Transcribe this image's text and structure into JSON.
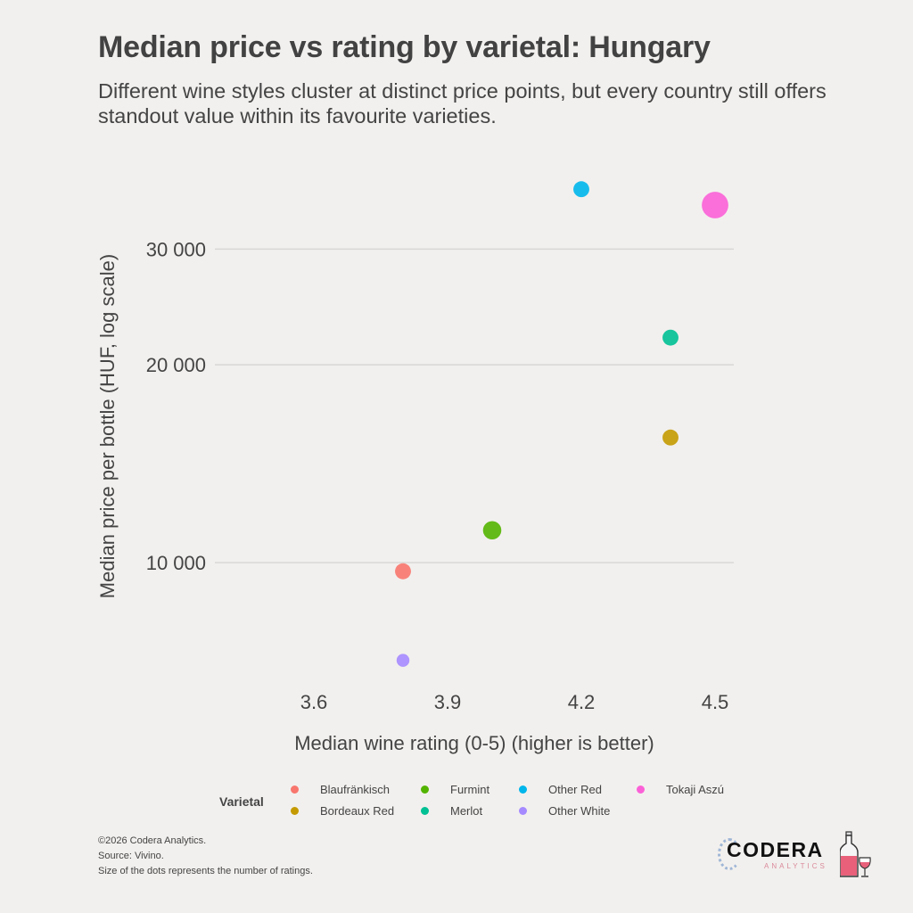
{
  "header": {
    "title": "Median price vs rating by varietal: Hungary",
    "subtitle": "Different wine styles cluster at distinct price points, but every country still offers standout value within its favourite varieties."
  },
  "chart_data": {
    "type": "scatter",
    "title": "Median price vs rating by varietal: Hungary",
    "xlabel": "Median wine rating (0-5) (higher is better)",
    "ylabel": "Median price per bottle (HUF, log scale)",
    "x_scale": "linear",
    "y_scale": "log",
    "xlim": [
      3.55,
      4.55
    ],
    "ylim": [
      6500,
      40000
    ],
    "x_ticks": [
      3.6,
      3.9,
      4.2,
      4.5
    ],
    "x_tick_labels": [
      "3.6",
      "3.9",
      "4.2",
      "4.5"
    ],
    "y_ticks": [
      10000,
      20000,
      30000
    ],
    "y_tick_labels": [
      "10 000",
      "20 000",
      "30 000"
    ],
    "grid": "horizontal-major",
    "legend_title": "Varietal",
    "legend_position": "bottom",
    "size_encoding": "number of ratings (relative)",
    "series": [
      {
        "name": "Blaufränkisch",
        "color": "#f8766d",
        "x": 3.8,
        "y": 9700,
        "size": 2
      },
      {
        "name": "Bordeaux Red",
        "color": "#c49a00",
        "x": 4.4,
        "y": 15500,
        "size": 2
      },
      {
        "name": "Furmint",
        "color": "#53b400",
        "x": 4.0,
        "y": 11200,
        "size": 3
      },
      {
        "name": "Merlot",
        "color": "#00c094",
        "x": 4.4,
        "y": 22000,
        "size": 2
      },
      {
        "name": "Other Red",
        "color": "#00b6eb",
        "x": 4.2,
        "y": 37000,
        "size": 2
      },
      {
        "name": "Other White",
        "color": "#a58aff",
        "x": 3.8,
        "y": 7100,
        "size": 1
      },
      {
        "name": "Tokaji Aszú",
        "color": "#fb61d7",
        "x": 4.5,
        "y": 35000,
        "size": 8
      }
    ]
  },
  "legend": {
    "title": "Varietal",
    "items": [
      {
        "label": "Blaufränkisch",
        "color": "#f8766d"
      },
      {
        "label": "Bordeaux Red",
        "color": "#c49a00"
      },
      {
        "label": "Furmint",
        "color": "#53b400"
      },
      {
        "label": "Merlot",
        "color": "#00c094"
      },
      {
        "label": "Other Red",
        "color": "#00b6eb"
      },
      {
        "label": "Other White",
        "color": "#a58aff"
      },
      {
        "label": "Tokaji Aszú",
        "color": "#fb61d7"
      }
    ]
  },
  "footer": {
    "copyright": "©2026 Codera Analytics.",
    "source": "Source: Vivino.",
    "note": "Size of the dots represents the number of ratings."
  },
  "logo": {
    "name": "CODERA",
    "sub": "ANALYTICS"
  }
}
